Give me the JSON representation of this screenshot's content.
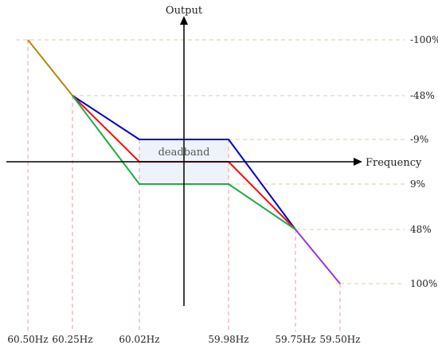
{
  "chart_data": {
    "type": "line",
    "xlabel": "Frequency",
    "ylabel": "Output",
    "x_ticks": [
      "60.50Hz",
      "60.25Hz",
      "60.02Hz",
      "59.98Hz",
      "59.75Hz",
      "59.50Hz"
    ],
    "y_ticks": [
      "-100%",
      "-48%",
      "-9%",
      "9%",
      "48%",
      "100%"
    ],
    "annotation": "deadband",
    "series": [
      {
        "color": "#b8860b",
        "x": [
          "60.50Hz",
          "60.25Hz"
        ],
        "y": [
          -100,
          -48
        ]
      },
      {
        "color": "#0000cc",
        "x": [
          "60.25Hz",
          "60.02Hz",
          "59.98Hz",
          "59.75Hz"
        ],
        "y": [
          -48,
          -9,
          -9,
          48
        ]
      },
      {
        "color": "#ee1111",
        "x": [
          "60.25Hz",
          "60.02Hz",
          "59.98Hz",
          "59.75Hz"
        ],
        "y": [
          -48,
          0,
          0,
          48
        ]
      },
      {
        "color": "#22aa44",
        "x": [
          "60.25Hz",
          "60.02Hz",
          "59.98Hz",
          "59.75Hz"
        ],
        "y": [
          -48,
          9,
          9,
          48
        ]
      },
      {
        "color": "#9933dd",
        "x": [
          "59.75Hz",
          "59.50Hz"
        ],
        "y": [
          48,
          100
        ]
      }
    ],
    "deadband_color": "#eef3fb",
    "v_guide_color": "#e0a0a0",
    "h_guide_color": "#d8cfa0",
    "axis_color": "#000000"
  }
}
